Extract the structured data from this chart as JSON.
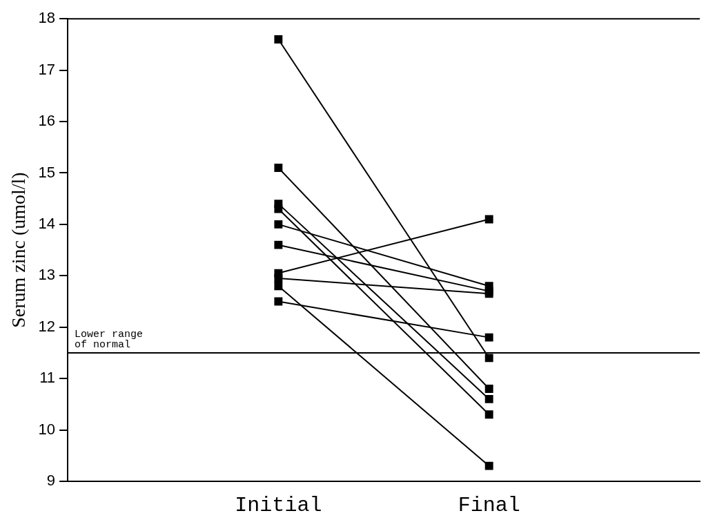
{
  "chart_data": {
    "type": "line",
    "ylabel": "Serum zinc (umol/l)",
    "categories": [
      "Initial",
      "Final"
    ],
    "series": [
      {
        "color": "#000000",
        "values": [
          17.6,
          11.4
        ]
      },
      {
        "color": "#000000",
        "values": [
          15.1,
          10.8
        ]
      },
      {
        "color": "#000000",
        "values": [
          14.4,
          10.6
        ]
      },
      {
        "color": "#000000",
        "values": [
          14.3,
          10.3
        ]
      },
      {
        "color": "#000000",
        "values": [
          14.0,
          12.8
        ]
      },
      {
        "color": "#000000",
        "values": [
          13.6,
          12.7
        ]
      },
      {
        "color": "#000000",
        "values": [
          13.05,
          14.1
        ]
      },
      {
        "color": "#000000",
        "values": [
          12.95,
          12.65
        ]
      },
      {
        "color": "#000000",
        "values": [
          12.8,
          9.3
        ]
      },
      {
        "color": "#000000",
        "values": [
          12.5,
          11.8
        ]
      }
    ],
    "ylim": [
      9,
      18
    ],
    "yticks": [
      9,
      10,
      11,
      12,
      13,
      14,
      15,
      16,
      17,
      18
    ],
    "ref_lines": [
      {
        "axis": "y",
        "value": 11.5,
        "label": "Lower range\nof normal",
        "color": "#000000"
      }
    ],
    "marker": "square",
    "grid": false,
    "legend": false
  }
}
